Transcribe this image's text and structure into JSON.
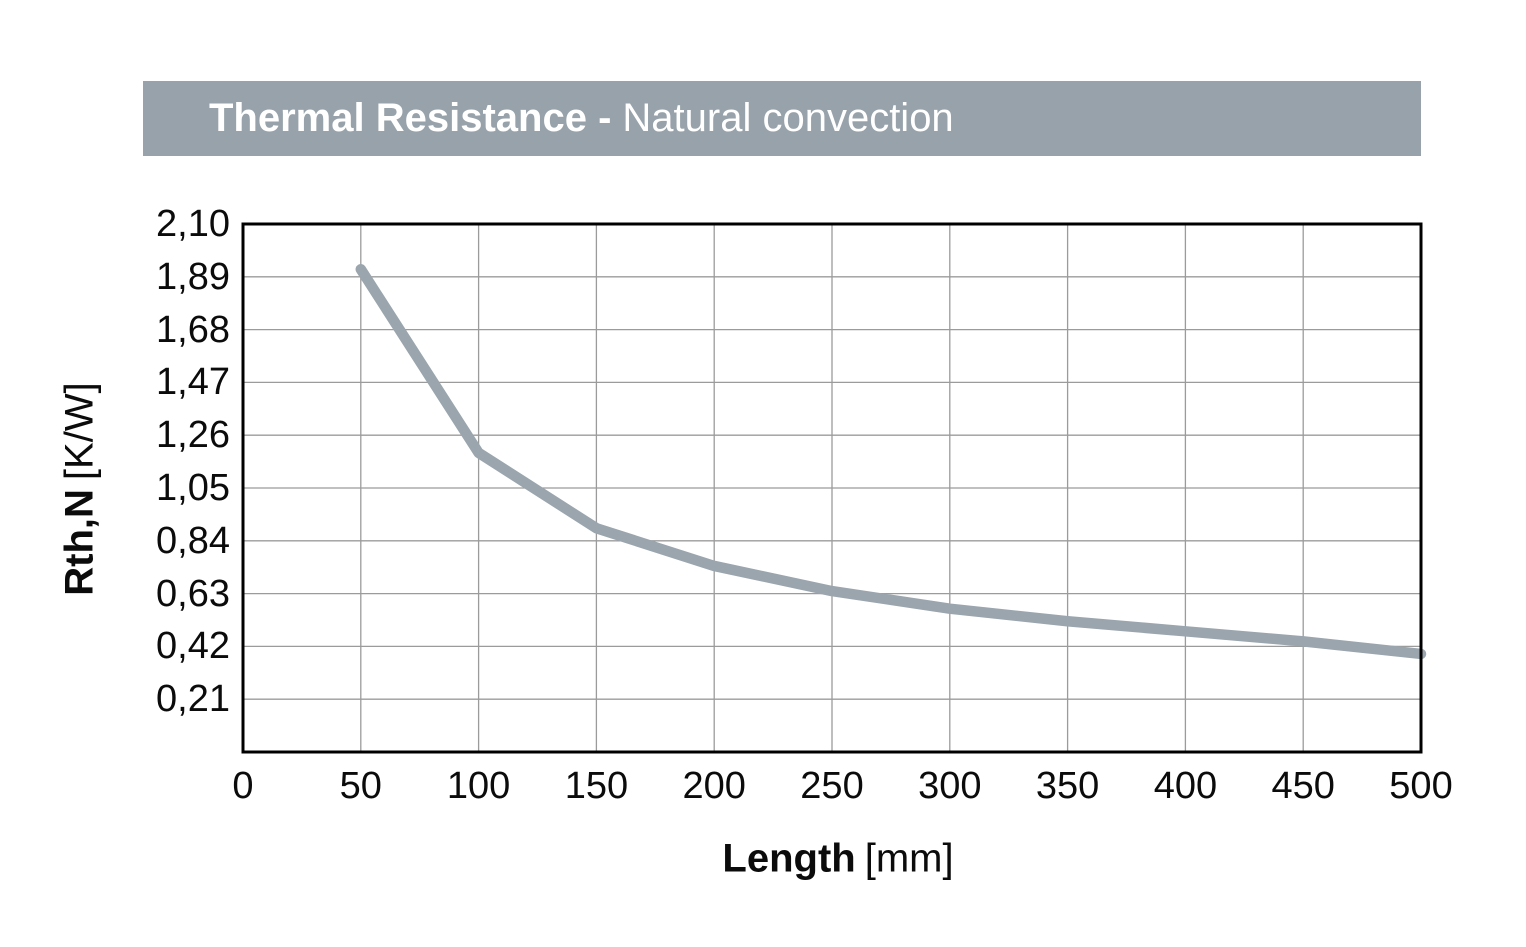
{
  "header": {
    "title_bold": "Thermal Resistance -",
    "title_regular": "Natural convection"
  },
  "chart_data": {
    "type": "line",
    "title": "Thermal Resistance - Natural convection",
    "x": [
      50,
      100,
      150,
      200,
      250,
      300,
      350,
      400,
      450,
      500
    ],
    "y": [
      1.92,
      1.19,
      0.89,
      0.74,
      0.64,
      0.57,
      0.52,
      0.48,
      0.44,
      0.39
    ],
    "series_name": "Rth,N natural convection",
    "xlabel_bold": "Length",
    "xlabel_unit": "[mm]",
    "ylabel_bold": "Rth,N",
    "ylabel_unit": "[K/W]",
    "xlim": [
      0,
      500
    ],
    "ylim": [
      0,
      2.1
    ],
    "xticks": [
      0,
      50,
      100,
      150,
      200,
      250,
      300,
      350,
      400,
      450,
      500
    ],
    "xticklabels": [
      "0",
      "50",
      "100",
      "150",
      "200",
      "250",
      "300",
      "350",
      "400",
      "450",
      "500"
    ],
    "yticks": [
      2.1,
      1.89,
      1.68,
      1.47,
      1.26,
      1.05,
      0.84,
      0.63,
      0.42,
      0.21
    ],
    "yticklabels": [
      "2,10",
      "1,89",
      "1,68",
      "1,47",
      "1,26",
      "1,05",
      "0,84",
      "0,63",
      "0,42",
      "0,21"
    ],
    "grid": true,
    "legend": "none",
    "decimal_separator": ",",
    "colors": {
      "line": "#9aa5ad",
      "header_bg": "#97a2aa",
      "header_text": "#ffffff",
      "grid": "#9b9b9b",
      "frame": "#000000",
      "text": "#0b0b0b"
    }
  }
}
